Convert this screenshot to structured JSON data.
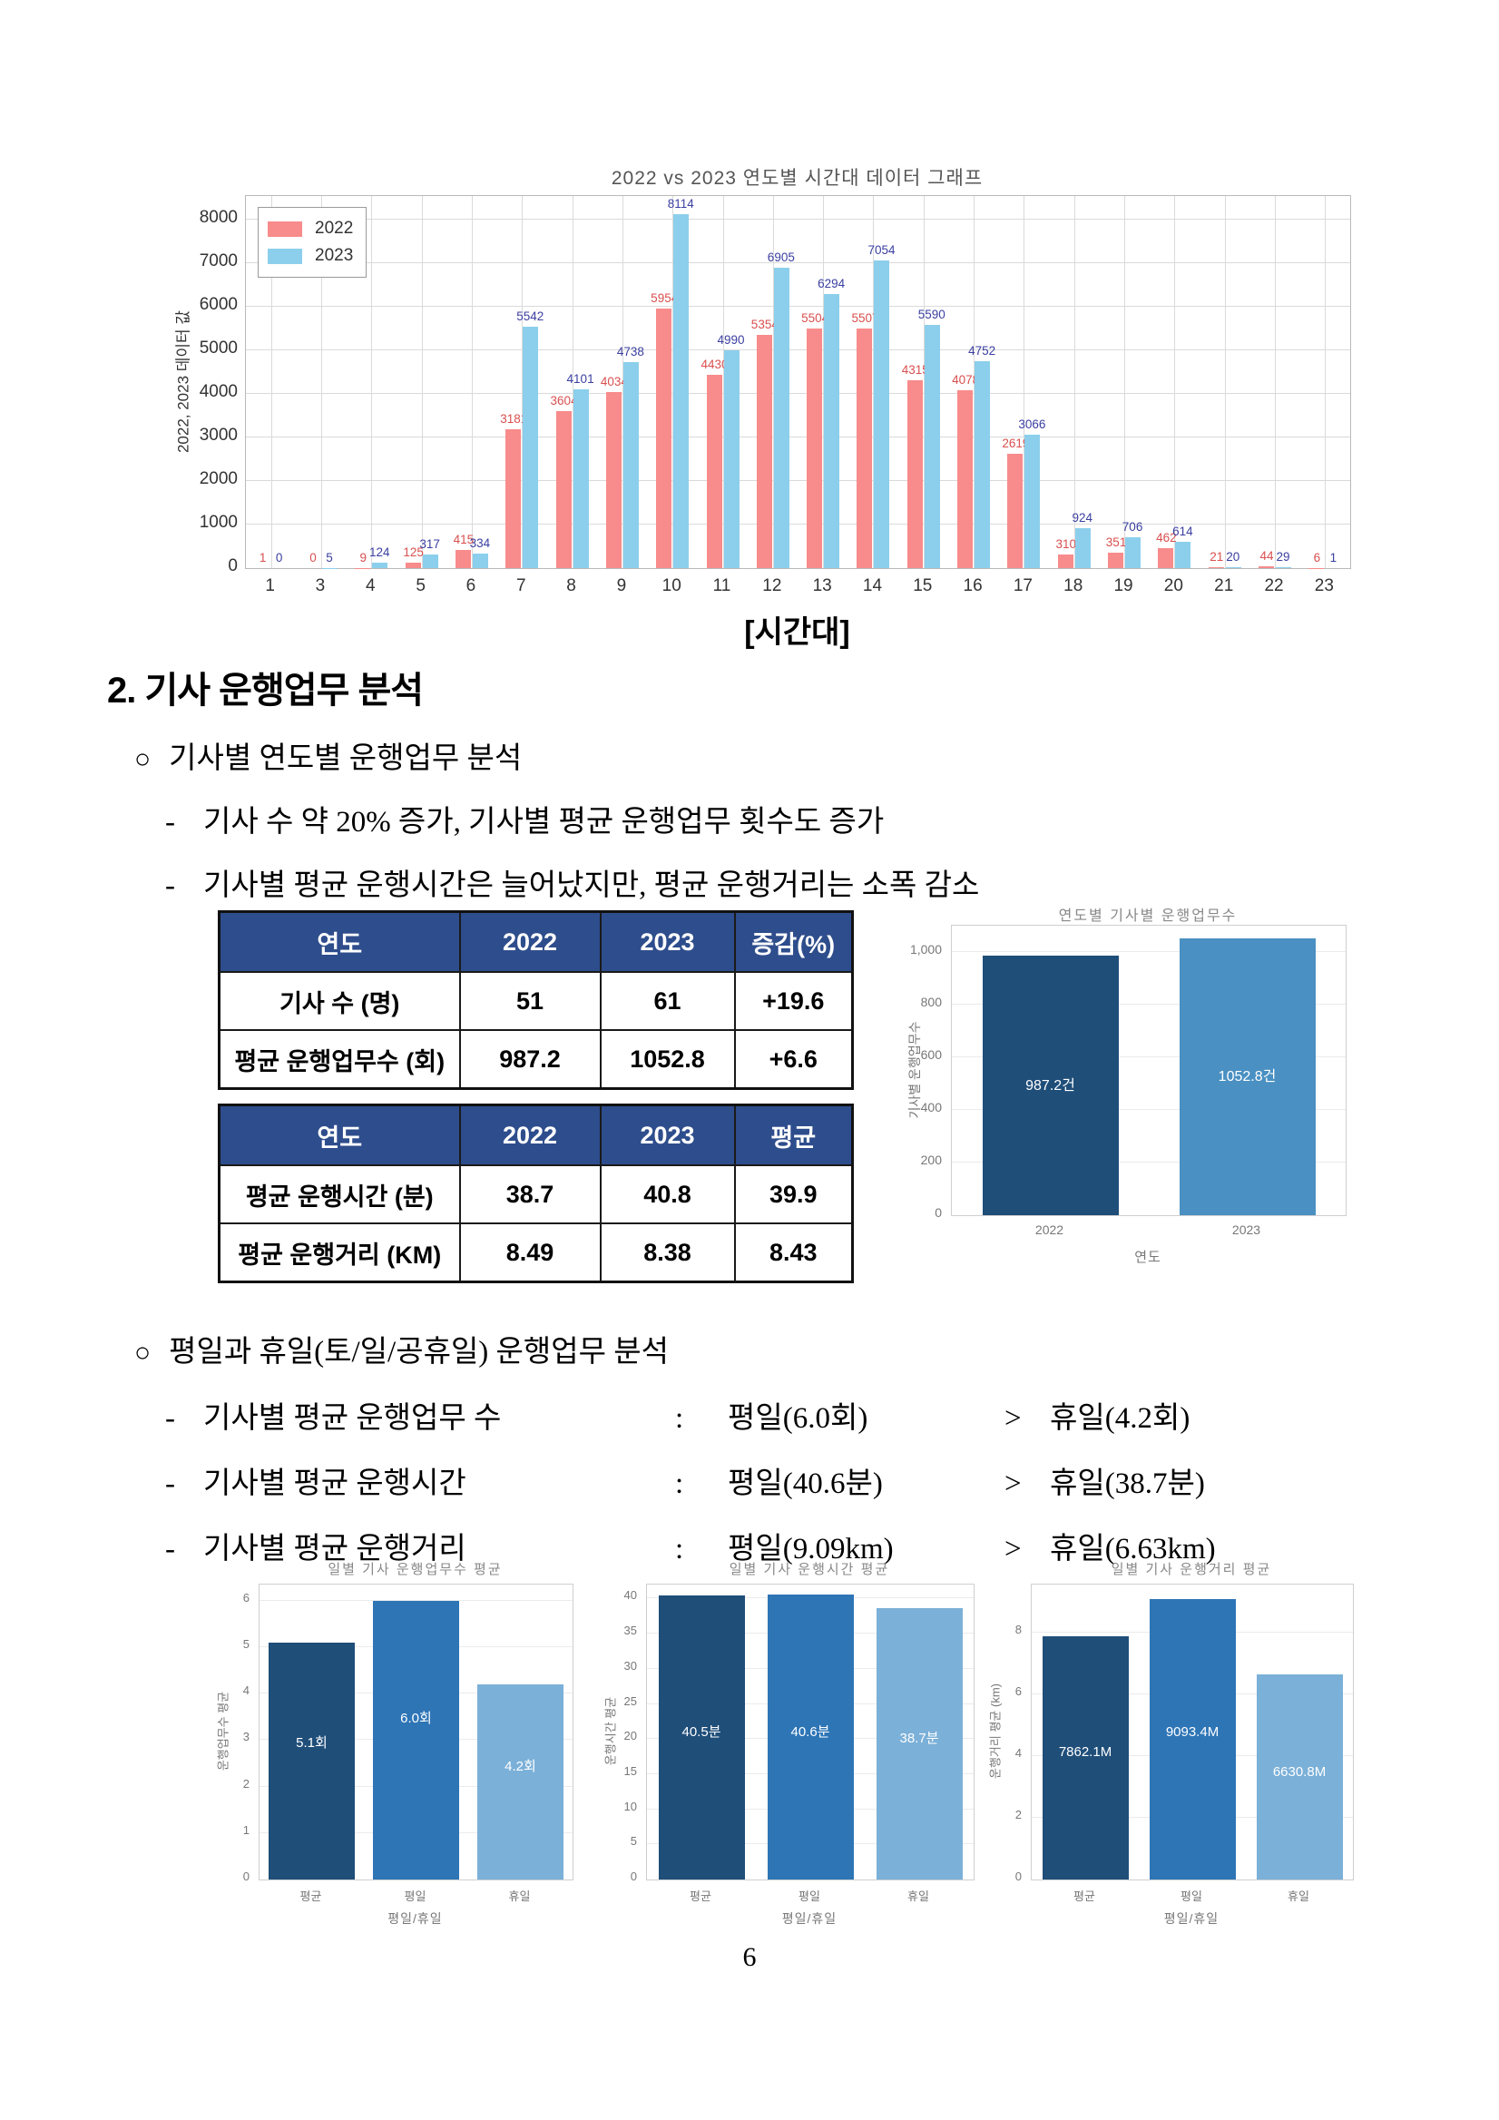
{
  "page": {
    "number": "6"
  },
  "colors": {
    "table_header_bg": "#2e4d8c",
    "table_header_text": "#ffffff",
    "series_2022_bar": "#f88b8b",
    "series_2023_bar": "#8ccfec",
    "series_2022_label": "#d94f4f",
    "series_2023_label": "#3a3fa0"
  },
  "section": {
    "heading": "2. 기사 운행업무 분석",
    "dash": "-",
    "sub1": {
      "marker": "○",
      "title": "기사별 연도별 운행업무 분석",
      "items": [
        "기사 수 약 20% 증가, 기사별 평균 운행업무 횟수도 증가",
        "기사별 평균 운행시간은 늘어났지만, 평균 운행거리는 소폭 감소"
      ]
    },
    "sub2": {
      "marker": "○",
      "title": "평일과 휴일(토/일/공휴일) 운행업무 분석",
      "items": [
        {
          "label": "기사별 평균 운행업무 수",
          "sep": ":",
          "weekday": "평일(6.0회)",
          "cmp": ">",
          "holiday": "휴일(4.2회)"
        },
        {
          "label": "기사별 평균 운행시간",
          "sep": ":",
          "weekday": "평일(40.6분)",
          "cmp": ">",
          "holiday": "휴일(38.7분)"
        },
        {
          "label": "기사별 평균 운행거리",
          "sep": ":",
          "weekday": "평일(9.09km)",
          "cmp": ">",
          "holiday": "휴일(6.63km)"
        }
      ]
    }
  },
  "tables": [
    {
      "headers": [
        "연도",
        "2022",
        "2023",
        "증감(%)"
      ],
      "rows": [
        [
          "기사 수 (명)",
          "51",
          "61",
          "+19.6"
        ],
        [
          "평균 운행업무수 (회)",
          "987.2",
          "1052.8",
          "+6.6"
        ]
      ]
    },
    {
      "headers": [
        "연도",
        "2022",
        "2023",
        "평균"
      ],
      "rows": [
        [
          "평균 운행시간 (분)",
          "38.7",
          "40.8",
          "39.9"
        ],
        [
          "평균 운행거리 (KM)",
          "8.49",
          "8.38",
          "8.43"
        ]
      ]
    }
  ],
  "chart_data": [
    {
      "id": "hourly",
      "type": "bar",
      "title": "2022 vs 2023 연도별 시간대 데이터 그래프",
      "xlabel": "[시간대]",
      "ylabel": "2022, 2023 데이터 값",
      "grid": true,
      "legend_position": "upper left",
      "categories": [
        "1",
        "3",
        "4",
        "5",
        "6",
        "7",
        "8",
        "9",
        "10",
        "11",
        "12",
        "13",
        "14",
        "15",
        "16",
        "17",
        "18",
        "19",
        "20",
        "21",
        "22",
        "23"
      ],
      "series": [
        {
          "name": "2022",
          "color": "#f88b8b",
          "label_color": "#d94f4f",
          "values": [
            1,
            0,
            9,
            125,
            415,
            3181,
            3604,
            4034,
            5954,
            4430,
            5354,
            5504,
            5507,
            4315,
            4078,
            2619,
            310,
            351,
            462,
            21,
            44,
            6
          ]
        },
        {
          "name": "2023",
          "color": "#8ccfec",
          "label_color": "#3a3fa0",
          "values": [
            0,
            5,
            124,
            317,
            334,
            5542,
            4101,
            4738,
            8114,
            4990,
            6905,
            6294,
            7054,
            5590,
            4752,
            3066,
            924,
            706,
            614,
            20,
            29,
            1
          ]
        }
      ],
      "ylim": [
        0,
        8540
      ],
      "yticks": [
        0,
        1000,
        2000,
        3000,
        4000,
        5000,
        6000,
        7000,
        8000
      ]
    },
    {
      "id": "yearly",
      "type": "bar",
      "title": "연도별 기사별 운행업무수",
      "xlabel": "연도",
      "ylabel": "기사별 운행업무수",
      "grid": true,
      "categories": [
        "2022",
        "2023"
      ],
      "values": [
        987.2,
        1052.8
      ],
      "bar_labels": [
        "987.2건",
        "1052.8건"
      ],
      "colors": [
        "#1f4e79",
        "#4a90c2"
      ],
      "ylim": [
        0,
        1100
      ],
      "yticks": [
        0,
        200,
        400,
        600,
        800,
        1000
      ],
      "ytick_labels": [
        "0",
        "200",
        "400",
        "600",
        "800",
        "1,000"
      ]
    },
    {
      "id": "daily-count",
      "type": "bar",
      "title": "일별 기사 운행업무수 평균",
      "xlabel": "평일/휴일",
      "ylabel": "운행업무수 평균",
      "grid": true,
      "categories": [
        "평균",
        "평일",
        "휴일"
      ],
      "values": [
        5.1,
        6.0,
        4.2
      ],
      "bar_labels": [
        "5.1회",
        "6.0회",
        "4.2회"
      ],
      "colors": [
        "#1f4e79",
        "#2e75b6",
        "#7bb0d8"
      ],
      "ylim": [
        0,
        6.35
      ],
      "yticks": [
        0,
        1,
        2,
        3,
        4,
        5,
        6
      ],
      "ytick_labels": [
        "0",
        "1",
        "2",
        "3",
        "4",
        "5",
        "6"
      ]
    },
    {
      "id": "daily-time",
      "type": "bar",
      "title": "일별 기사 운행시간 평균",
      "xlabel": "평일/휴일",
      "ylabel": "운행시간 평균",
      "grid": true,
      "categories": [
        "평균",
        "평일",
        "휴일"
      ],
      "values": [
        40.5,
        40.6,
        38.7
      ],
      "bar_labels": [
        "40.5분",
        "40.6분",
        "38.7분"
      ],
      "colors": [
        "#1f4e79",
        "#2e75b6",
        "#7bb0d8"
      ],
      "ylim": [
        0,
        42
      ],
      "yticks": [
        0,
        5,
        10,
        15,
        20,
        25,
        30,
        35,
        40
      ],
      "ytick_labels": [
        "0",
        "5",
        "10",
        "15",
        "20",
        "25",
        "30",
        "35",
        "40"
      ]
    },
    {
      "id": "daily-distance",
      "type": "bar",
      "title": "일별 기사 운행거리 평균",
      "xlabel": "평일/휴일",
      "ylabel": "운행거리 평균 (km)",
      "grid": true,
      "categories": [
        "평균",
        "평일",
        "휴일"
      ],
      "values": [
        7.8621,
        9.0934,
        6.6308
      ],
      "bar_labels": [
        "7862.1M",
        "9093.4M",
        "6630.8M"
      ],
      "colors": [
        "#1f4e79",
        "#2e75b6",
        "#7bb0d8"
      ],
      "ylim": [
        0,
        9.55
      ],
      "yticks": [
        0,
        2,
        4,
        6,
        8
      ],
      "ytick_labels": [
        "0",
        "2",
        "4",
        "6",
        "8"
      ]
    }
  ]
}
